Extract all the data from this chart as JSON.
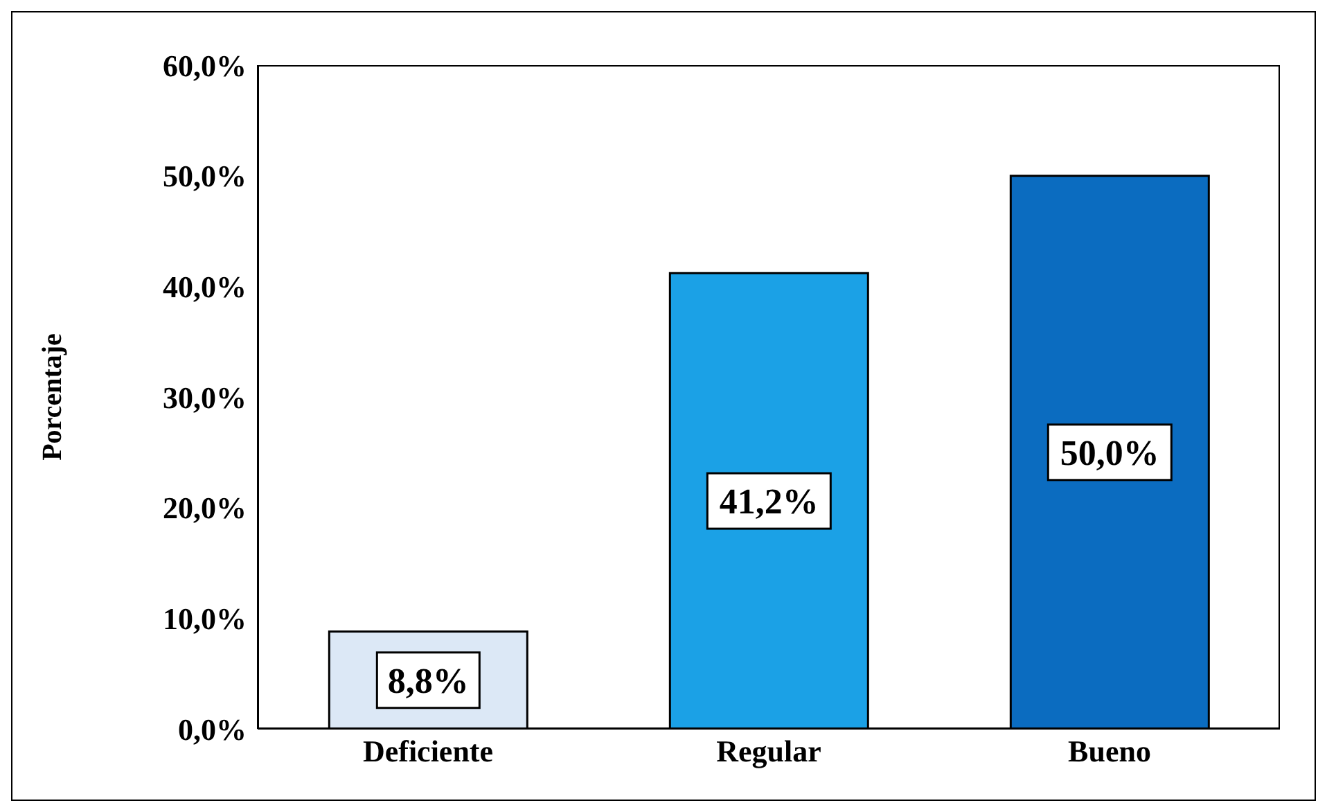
{
  "chart_data": {
    "type": "bar",
    "ylabel": "Porcentaje",
    "categories": [
      "Deficiente",
      "Regular",
      "Bueno"
    ],
    "values": [
      8.8,
      41.2,
      50.0
    ],
    "colors": [
      "#dce8f6",
      "#1ba1e6",
      "#0b6cc0"
    ],
    "value_labels": [
      "8,8%",
      "41,2%",
      "50,0%"
    ],
    "ylim": [
      0,
      60
    ],
    "yticks": [
      {
        "value": 0,
        "label": "0,0%"
      },
      {
        "value": 10,
        "label": "10,0%"
      },
      {
        "value": 20,
        "label": "20,0%"
      },
      {
        "value": 30,
        "label": "30,0%"
      },
      {
        "value": 40,
        "label": "40,0%"
      },
      {
        "value": 50,
        "label": "50,0%"
      },
      {
        "value": 60,
        "label": "60,0%"
      }
    ],
    "grid": false,
    "legend": false
  }
}
